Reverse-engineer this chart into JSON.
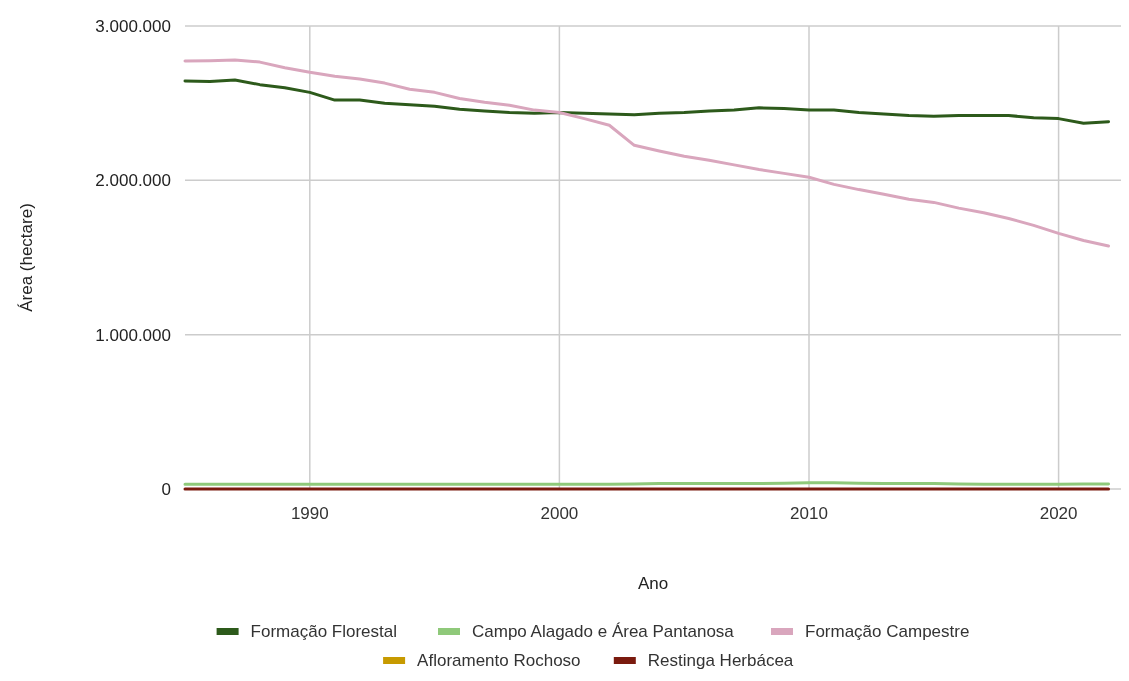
{
  "chart_data": {
    "type": "line",
    "xlabel": "Ano",
    "ylabel": "Área (hectare)",
    "x": [
      1985,
      1986,
      1987,
      1988,
      1989,
      1990,
      1991,
      1992,
      1993,
      1994,
      1995,
      1996,
      1997,
      1998,
      1999,
      2000,
      2001,
      2002,
      2003,
      2004,
      2005,
      2006,
      2007,
      2008,
      2009,
      2010,
      2011,
      2012,
      2013,
      2014,
      2015,
      2016,
      2017,
      2018,
      2019,
      2020,
      2021,
      2022
    ],
    "xlim": [
      1985,
      2022.5
    ],
    "xticks": [
      1990,
      2000,
      2010,
      2020
    ],
    "ylim": [
      0,
      3000000
    ],
    "yticks": [
      0,
      {
        "value": 1000000,
        "label": "1.000.000"
      },
      {
        "value": 2000000,
        "label": "2.000.000"
      },
      {
        "value": 3000000,
        "label": "3.000.000"
      }
    ],
    "grid": true,
    "legend": "bottom",
    "line_style": "solid",
    "marker": "none",
    "series": [
      {
        "name": "Formação Florestal",
        "color": "#2d5a1b",
        "values": [
          2643000,
          2640000,
          2650000,
          2620000,
          2600000,
          2570000,
          2520000,
          2520000,
          2500000,
          2490000,
          2480000,
          2460000,
          2450000,
          2440000,
          2435000,
          2440000,
          2435000,
          2430000,
          2425000,
          2435000,
          2440000,
          2450000,
          2455000,
          2470000,
          2465000,
          2455000,
          2455000,
          2440000,
          2430000,
          2420000,
          2415000,
          2420000,
          2420000,
          2420000,
          2405000,
          2400000,
          2370000,
          2380000
        ]
      },
      {
        "name": "Campo Alagado e Área Pantanosa",
        "color": "#8fc97a",
        "values": [
          30000,
          30000,
          30000,
          30000,
          30000,
          30000,
          30000,
          30000,
          30000,
          30000,
          30000,
          30000,
          30000,
          30000,
          30000,
          30000,
          30000,
          30000,
          32000,
          35000,
          35000,
          35000,
          35000,
          35000,
          38000,
          40000,
          40000,
          38000,
          35000,
          35000,
          35000,
          33000,
          30000,
          30000,
          30000,
          30000,
          32000,
          33000
        ]
      },
      {
        "name": "Formação Campestre",
        "color": "#d9a6bd",
        "values": [
          2773000,
          2775000,
          2780000,
          2766000,
          2730000,
          2700000,
          2675000,
          2656000,
          2630000,
          2590000,
          2570000,
          2530000,
          2506000,
          2487000,
          2455000,
          2440000,
          2400000,
          2357000,
          2227000,
          2190000,
          2156000,
          2130000,
          2100000,
          2070000,
          2045000,
          2020000,
          1974000,
          1940000,
          1910000,
          1877000,
          1857000,
          1820000,
          1790000,
          1753000,
          1708000,
          1656000,
          1610000,
          1575000
        ]
      },
      {
        "name": "Afloramento Rochoso",
        "color": "#c79a00",
        "values": [
          null,
          null,
          null,
          null,
          null,
          null,
          null,
          null,
          null,
          null,
          null,
          null,
          null,
          null,
          null,
          null,
          null,
          null,
          null,
          null,
          null,
          null,
          null,
          null,
          null,
          null,
          null,
          null,
          null,
          null,
          null,
          null,
          null,
          null,
          null,
          null,
          null,
          null
        ]
      },
      {
        "name": "Restinga Herbácea",
        "color": "#7a1a0e",
        "values": [
          0,
          0,
          0,
          0,
          0,
          0,
          0,
          0,
          0,
          0,
          0,
          0,
          0,
          0,
          0,
          0,
          0,
          0,
          0,
          0,
          0,
          0,
          0,
          0,
          0,
          0,
          0,
          0,
          0,
          0,
          0,
          0,
          0,
          0,
          0,
          0,
          0,
          0
        ]
      }
    ]
  }
}
